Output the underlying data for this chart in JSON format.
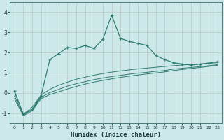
{
  "humidex_x": [
    0,
    1,
    2,
    3,
    4,
    5,
    6,
    7,
    8,
    9,
    10,
    11,
    12,
    13,
    14,
    15,
    16,
    17,
    18,
    19,
    20,
    21,
    22,
    23
  ],
  "line1_y": [
    0.1,
    -1.05,
    -0.8,
    -0.15,
    1.65,
    1.95,
    2.25,
    2.2,
    2.35,
    2.2,
    2.65,
    3.85,
    2.7,
    2.55,
    2.45,
    2.35,
    1.85,
    1.65,
    1.5,
    1.43,
    1.38,
    1.43,
    1.48,
    1.55
  ],
  "line2_y": [
    0.05,
    -1.05,
    -0.7,
    -0.1,
    0.18,
    0.38,
    0.54,
    0.68,
    0.78,
    0.88,
    0.96,
    1.03,
    1.09,
    1.14,
    1.19,
    1.23,
    1.27,
    1.31,
    1.35,
    1.38,
    1.41,
    1.43,
    1.46,
    1.5
  ],
  "line3_y": [
    -0.15,
    -1.08,
    -0.82,
    -0.22,
    0.02,
    0.18,
    0.34,
    0.46,
    0.56,
    0.66,
    0.74,
    0.81,
    0.87,
    0.93,
    0.98,
    1.02,
    1.07,
    1.11,
    1.18,
    1.22,
    1.26,
    1.3,
    1.35,
    1.4
  ],
  "line4_y": [
    -0.28,
    -1.12,
    -0.88,
    -0.28,
    -0.08,
    0.06,
    0.2,
    0.32,
    0.44,
    0.54,
    0.62,
    0.7,
    0.77,
    0.83,
    0.89,
    0.94,
    0.99,
    1.04,
    1.11,
    1.16,
    1.21,
    1.26,
    1.31,
    1.37
  ],
  "line_color": "#2e7d6e",
  "bg_color": "#cce8e8",
  "grid_color": "#b8c8c8",
  "xlabel": "Humidex (Indice chaleur)",
  "xlim": [
    -0.5,
    23.5
  ],
  "ylim": [
    -1.5,
    4.5
  ],
  "yticks": [
    -1,
    0,
    1,
    2,
    3,
    4
  ],
  "xticks": [
    0,
    1,
    2,
    3,
    4,
    5,
    6,
    7,
    8,
    9,
    10,
    11,
    12,
    13,
    14,
    15,
    16,
    17,
    18,
    19,
    20,
    21,
    22,
    23
  ]
}
